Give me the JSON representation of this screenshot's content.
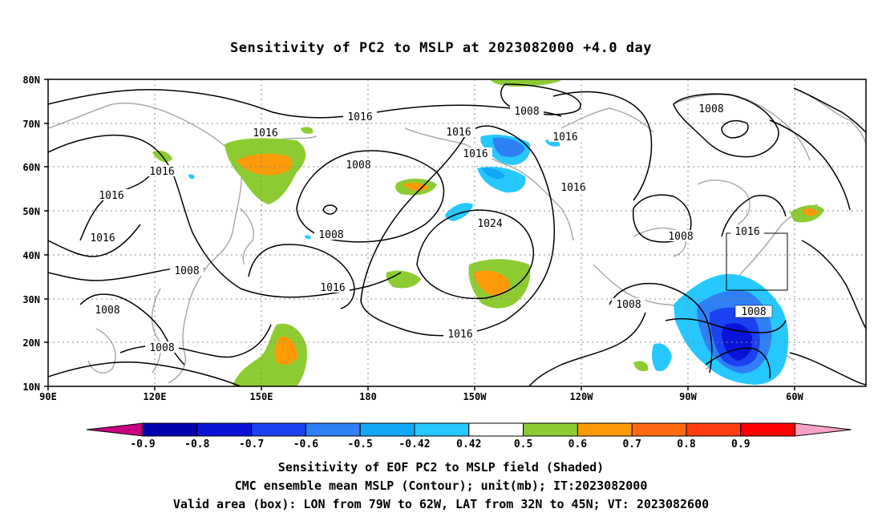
{
  "title": "Sensitivity of PC2 to MSLP at 2023082000 +4.0 day",
  "map": {
    "lat_labels": [
      "80N",
      "70N",
      "60N",
      "50N",
      "40N",
      "30N",
      "20N",
      "10N"
    ],
    "lon_labels": [
      "90E",
      "120E",
      "150E",
      "180",
      "150W",
      "120W",
      "90W",
      "60W"
    ],
    "valid_box": {
      "lon_from": "79W",
      "lon_to": "62W",
      "lat_from": "32N",
      "lat_to": "45N"
    }
  },
  "contour_labels": [
    "1016",
    "1008",
    "1016",
    "1016",
    "1016",
    "1016",
    "1016",
    "1008",
    "1016",
    "1016",
    "1008",
    "1024",
    "1008",
    "1016",
    "1016",
    "1008",
    "1008",
    "1008",
    "1008",
    "1016",
    "1008"
  ],
  "colorbar": {
    "colors": [
      "#c8007f",
      "#0000b0",
      "#0a14d8",
      "#1c41f0",
      "#2f7ff5",
      "#12a8f5",
      "#26c8ff",
      "#ffffff",
      "#8ccc32",
      "#fd9a08",
      "#ff6a10",
      "#ff3d10",
      "#ff0000",
      "#f7a2c6"
    ],
    "labels": [
      "-0.9",
      "-0.8",
      "-0.7",
      "-0.6",
      "-0.5",
      "-0.42",
      "0.42",
      "0.5",
      "0.6",
      "0.7",
      "0.8",
      "0.9"
    ]
  },
  "caption": {
    "line1": "Sensitivity of EOF PC2 to MSLP field (Shaded)",
    "line2": "CMC ensemble mean MSLP (Contour); unit(mb); IT:2023082000",
    "line3": "Valid area (box): LON from 79W to 62W, LAT from 32N to 45N; VT: 2023082600"
  }
}
